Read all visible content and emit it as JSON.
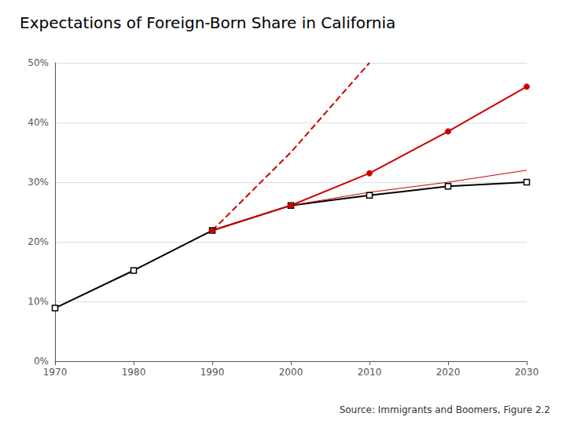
{
  "chart_data": {
    "type": "line",
    "title": "Expectations of Foreign-Born Share in California",
    "annotations": [
      "Source: Immigrants and Boomers, Figure 2.2"
    ],
    "xlim": [
      1970,
      2030
    ],
    "xticks": [
      1970,
      1980,
      1990,
      2000,
      2010,
      2020,
      2030
    ],
    "ylim": [
      0,
      0.5
    ],
    "yticks": [
      {
        "value": 0,
        "label": "0%"
      },
      {
        "value": 0.1,
        "label": "10%"
      },
      {
        "value": 0.2,
        "label": "20%"
      },
      {
        "value": 0.3,
        "label": "30%"
      },
      {
        "value": 0.4,
        "label": "40%"
      },
      {
        "value": 0.5,
        "label": "50%"
      }
    ],
    "grid": "y",
    "series": [
      {
        "x": [
          1970,
          1980,
          1990,
          2000,
          2010,
          2020,
          2030
        ],
        "values": [
          0.089,
          0.152,
          0.219,
          0.261,
          0.278,
          0.293,
          0.3
        ],
        "color": "#000000",
        "marker": "square",
        "line_style": "solid"
      },
      {
        "x": [
          1990,
          2000,
          2010,
          2020,
          2030
        ],
        "values": [
          0.219,
          0.261,
          0.315,
          0.385,
          0.46
        ],
        "color": "#cc0000",
        "marker": "circle",
        "line_style": "solid"
      },
      {
        "x": [
          1990,
          2000,
          2010
        ],
        "values": [
          0.219,
          0.35,
          0.5
        ],
        "color": "#cc0000",
        "marker": "none",
        "line_style": "dashed"
      },
      {
        "x": [
          2000,
          2010,
          2020,
          2030
        ],
        "values": [
          0.261,
          0.283,
          0.3,
          0.32
        ],
        "color": "#cc0000",
        "marker": "none",
        "line_style": "solid"
      }
    ]
  }
}
